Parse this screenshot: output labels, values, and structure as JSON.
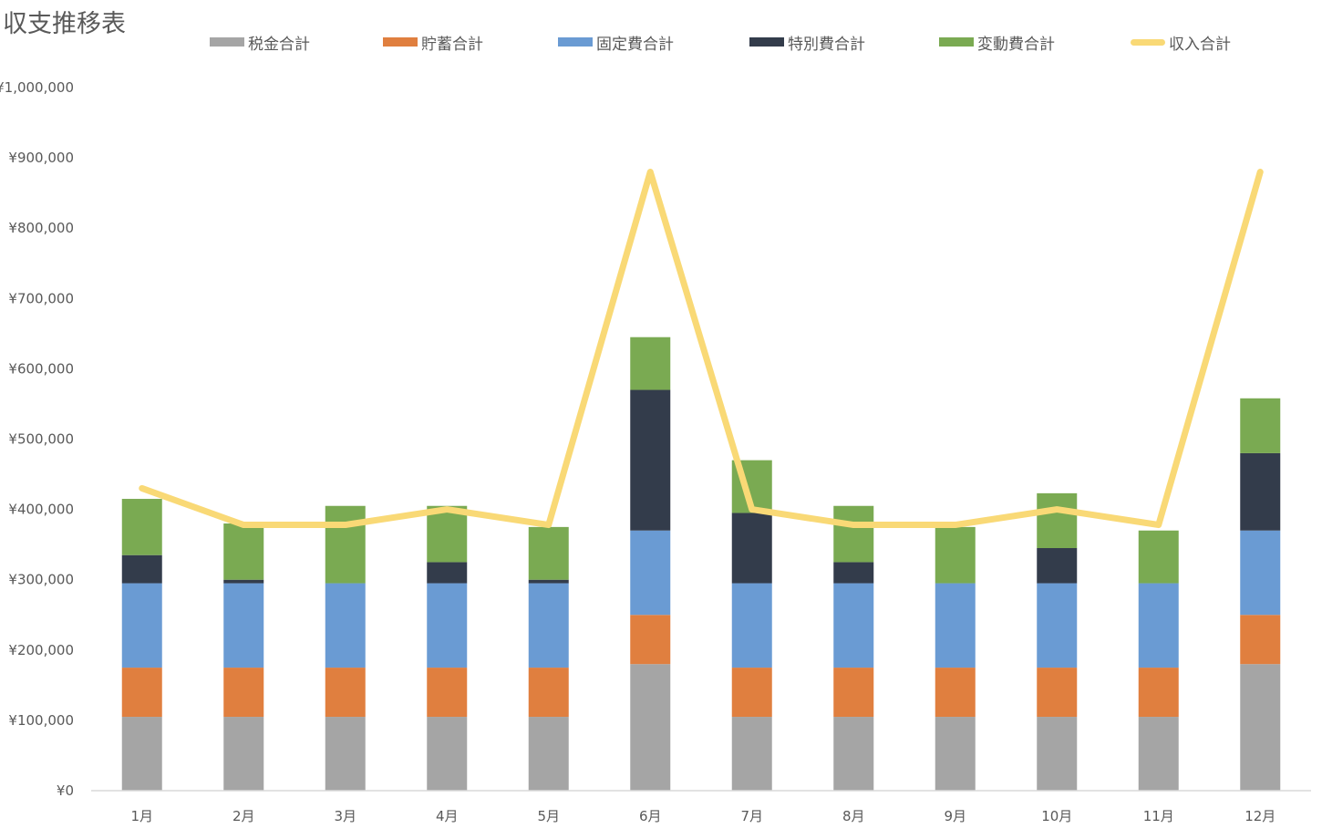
{
  "chart_data": {
    "type": "bar",
    "stacked": true,
    "title": "収支推移表",
    "categories": [
      "1月",
      "2月",
      "3月",
      "4月",
      "5月",
      "6月",
      "7月",
      "8月",
      "9月",
      "10月",
      "11月",
      "12月"
    ],
    "series": [
      {
        "name": "税金合計",
        "type": "bar",
        "color": "#A5A5A5",
        "values": [
          105000,
          105000,
          105000,
          105000,
          105000,
          180000,
          105000,
          105000,
          105000,
          105000,
          105000,
          180000
        ]
      },
      {
        "name": "貯蓄合計",
        "type": "bar",
        "color": "#E07F3F",
        "values": [
          70000,
          70000,
          70000,
          70000,
          70000,
          70000,
          70000,
          70000,
          70000,
          70000,
          70000,
          70000
        ]
      },
      {
        "name": "固定費合計",
        "type": "bar",
        "color": "#6A9BD3",
        "values": [
          120000,
          120000,
          120000,
          120000,
          120000,
          120000,
          120000,
          120000,
          120000,
          120000,
          120000,
          120000
        ]
      },
      {
        "name": "特別費合計",
        "type": "bar",
        "color": "#333C4B",
        "values": [
          40000,
          5000,
          0,
          30000,
          5000,
          200000,
          100000,
          30000,
          0,
          50000,
          0,
          110000
        ]
      },
      {
        "name": "変動費合計",
        "type": "bar",
        "color": "#7AAA52",
        "values": [
          80000,
          80000,
          110000,
          80000,
          75000,
          75000,
          75000,
          80000,
          80000,
          78000,
          75000,
          78000
        ]
      },
      {
        "name": "収入合計",
        "type": "line",
        "color": "#F9D976",
        "values": [
          430000,
          378000,
          378000,
          400000,
          378000,
          880000,
          400000,
          378000,
          378000,
          400000,
          378000,
          880000
        ]
      }
    ],
    "ylim": [
      0,
      1000000
    ],
    "yticks": [
      0,
      100000,
      200000,
      300000,
      400000,
      500000,
      600000,
      700000,
      800000,
      900000,
      1000000
    ],
    "ytick_labels": [
      "¥0",
      "¥100,000",
      "¥200,000",
      "¥300,000",
      "¥400,000",
      "¥500,000",
      "¥600,000",
      "¥700,000",
      "¥800,000",
      "¥900,000",
      "¥1,000,000"
    ],
    "grid": false,
    "legend_position": "top"
  }
}
